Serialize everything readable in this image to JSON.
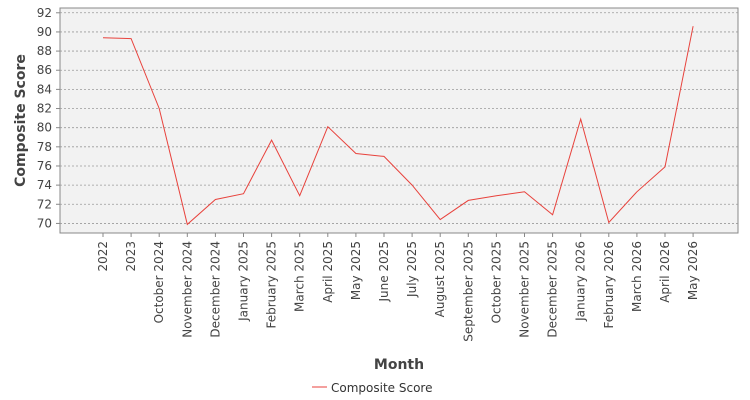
{
  "chart_data": {
    "type": "line",
    "xlabel": "Month",
    "ylabel": "Composite Score",
    "categories": [
      "2022",
      "2023",
      "October 2024",
      "November 2024",
      "December 2024",
      "January 2025",
      "February 2025",
      "March 2025",
      "April 2025",
      "May 2025",
      "June 2025",
      "July 2025",
      "August 2025",
      "September 2025",
      "October 2025",
      "November 2025",
      "December 2025",
      "January 2026",
      "February 2026",
      "March 2026",
      "April 2026",
      "May 2026"
    ],
    "series": [
      {
        "name": "Composite Score",
        "color": "#e8423c",
        "values": [
          89.4,
          89.3,
          82.0,
          69.9,
          72.5,
          73.1,
          78.7,
          72.9,
          80.1,
          77.3,
          77.0,
          74.0,
          70.4,
          72.4,
          72.9,
          73.3,
          70.9,
          80.9,
          70.1,
          73.3,
          75.9,
          90.6
        ]
      }
    ],
    "ylim": [
      69,
      92.5
    ],
    "yticks": [
      70,
      72,
      74,
      76,
      78,
      80,
      82,
      84,
      86,
      88,
      90,
      92
    ],
    "grid": true,
    "legend": "bottom-center",
    "plot_background": "#f2f2f2"
  }
}
